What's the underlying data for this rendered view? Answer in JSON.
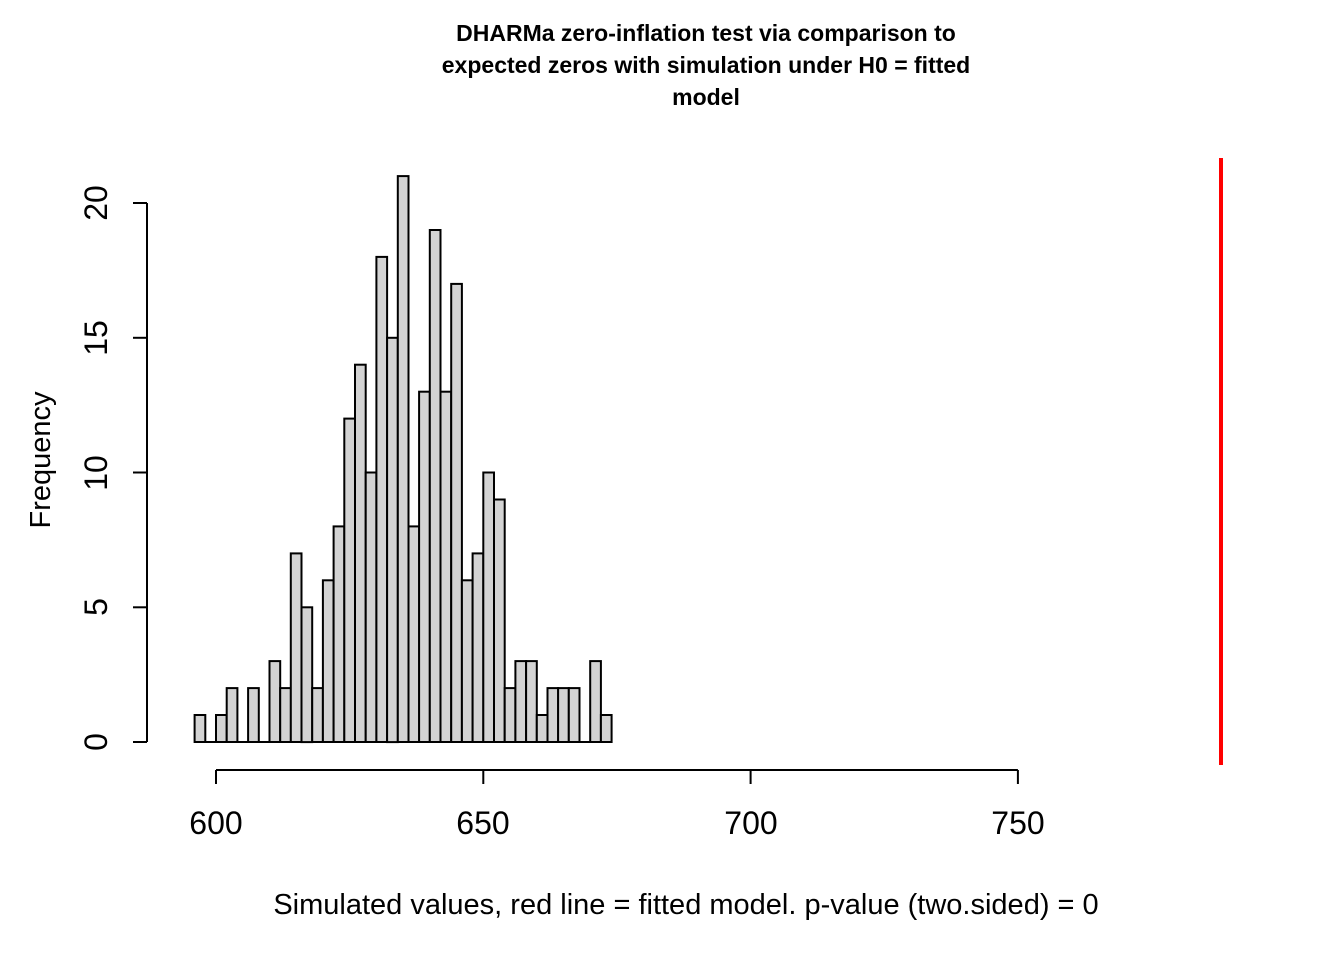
{
  "page": {
    "background": "#FFFFFF"
  },
  "chart_data": {
    "type": "bar",
    "subtype": "histogram",
    "title": "DHARMa zero-inflation test via comparison to expected zeros with simulation under H0 = fitted model",
    "title_lines": [
      "DHARMa zero-inflation test via comparison to",
      "expected zeros with simulation under H0 = fitted",
      "model"
    ],
    "xlabel": "Simulated values, red line = fitted model. p-value (two.sided) = 0",
    "ylabel": "Frequency",
    "x_ticks": [
      600,
      650,
      700,
      750
    ],
    "x_tick_labels": [
      "600",
      "650",
      "700",
      "750"
    ],
    "y_ticks": [
      0,
      5,
      10,
      15,
      20
    ],
    "y_tick_labels": [
      "0",
      "5",
      "10",
      "15",
      "20"
    ],
    "xlim": [
      595,
      789
    ],
    "ylim": [
      0,
      21
    ],
    "bins": {
      "start": 596,
      "width": 2
    },
    "counts": [
      1,
      0,
      1,
      2,
      0,
      2,
      0,
      3,
      2,
      7,
      5,
      2,
      6,
      8,
      12,
      14,
      10,
      18,
      15,
      21,
      8,
      13,
      19,
      13,
      17,
      6,
      7,
      10,
      9,
      2,
      3,
      3,
      1,
      2,
      2,
      2,
      0,
      3,
      1
    ],
    "n_simulations_total": 250,
    "red_line_x": 788,
    "grid": false,
    "legend": null,
    "colors": {
      "bar_fill": "#D3D3D3",
      "bar_stroke": "#000000",
      "red_line": "#FF0000",
      "axis": "#000000",
      "text": "#000000"
    }
  }
}
